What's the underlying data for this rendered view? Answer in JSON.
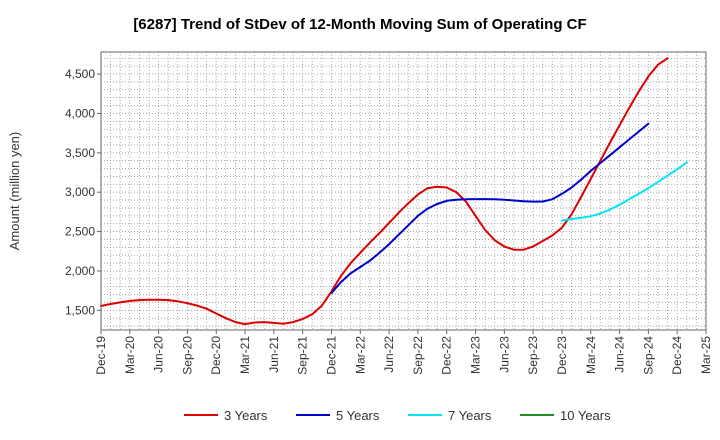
{
  "chart_data": {
    "type": "line",
    "title": "[6287]  Trend of StDev of 12-Month Moving Sum of Operating CF",
    "xlabel": "",
    "ylabel": "Amount (million yen)",
    "ylim": [
      1250,
      4780
    ],
    "yticks": [
      1500,
      2000,
      2500,
      3000,
      3500,
      4000,
      4500
    ],
    "ytick_labels": [
      "1,500",
      "2,000",
      "2,500",
      "3,000",
      "3,500",
      "4,000",
      "4,500"
    ],
    "x_tick_labels": [
      "Dec-19",
      "Mar-20",
      "Jun-20",
      "Sep-20",
      "Dec-20",
      "Mar-21",
      "Jun-21",
      "Sep-21",
      "Dec-21",
      "Mar-22",
      "Jun-22",
      "Sep-22",
      "Dec-22",
      "Mar-23",
      "Jun-23",
      "Sep-23",
      "Dec-23",
      "Mar-24",
      "Jun-24",
      "Sep-24",
      "Dec-24",
      "Mar-25"
    ],
    "x_start": "Dec-19",
    "x_months": 63,
    "series": [
      {
        "name": "3 Years",
        "color": "#dd0000",
        "start_month": 0,
        "values": [
          1555,
          1580,
          1600,
          1620,
          1630,
          1635,
          1635,
          1630,
          1615,
          1590,
          1560,
          1520,
          1460,
          1400,
          1350,
          1325,
          1345,
          1350,
          1340,
          1330,
          1350,
          1390,
          1450,
          1560,
          1740,
          1940,
          2100,
          2230,
          2360,
          2480,
          2610,
          2740,
          2860,
          2970,
          3050,
          3070,
          3060,
          3000,
          2880,
          2700,
          2520,
          2390,
          2310,
          2270,
          2270,
          2310,
          2380,
          2450,
          2550,
          2720,
          2940,
          3170,
          3400,
          3630,
          3850,
          4070,
          4280,
          4470,
          4620,
          4700
        ]
      },
      {
        "name": "5 Years",
        "color": "#0000cc",
        "start_month": 24,
        "values": [
          1720,
          1860,
          1970,
          2050,
          2130,
          2230,
          2340,
          2460,
          2580,
          2700,
          2790,
          2850,
          2890,
          2905,
          2910,
          2912,
          2912,
          2910,
          2905,
          2895,
          2885,
          2880,
          2882,
          2910,
          2980,
          3060,
          3160,
          3270,
          3370,
          3470,
          3570,
          3670,
          3770,
          3870
        ]
      },
      {
        "name": "7 Years",
        "color": "#00e5ee",
        "start_month": 48,
        "values": [
          2640,
          2660,
          2675,
          2695,
          2730,
          2780,
          2840,
          2910,
          2980,
          3050,
          3130,
          3210,
          3290,
          3380
        ]
      },
      {
        "name": "10 Years",
        "color": "#228b22",
        "start_month": 0,
        "values": []
      }
    ],
    "grid": true,
    "legend_position": "bottom"
  }
}
